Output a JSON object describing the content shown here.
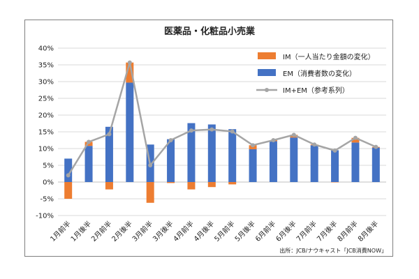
{
  "chart_data": {
    "type": "bar",
    "title": "医薬品・化粧品小売業",
    "source_note": "出所：JCB/ナウキャスト「JCB消費NOW」",
    "categories": [
      "1月前半",
      "1月後半",
      "2月前半",
      "2月後半",
      "3月前半",
      "3月後半",
      "4月前半",
      "4月後半",
      "5月前半",
      "5月後半",
      "6月前半",
      "6月後半",
      "7月前半",
      "7月後半",
      "8月前半",
      "8月後半"
    ],
    "y_ticks": [
      "-10%",
      "-5%",
      "0%",
      "5%",
      "10%",
      "15%",
      "20%",
      "25%",
      "30%",
      "35%",
      "40%"
    ],
    "ylim": [
      -10,
      40
    ],
    "grid": true,
    "legend_position": "top-right",
    "stacked": true,
    "series": [
      {
        "name": "IM（一人当たり金額の変化）",
        "type": "bar",
        "color": "#ED7D31",
        "values": [
          -5.0,
          1.2,
          -2.2,
          6.0,
          -6.2,
          -0.3,
          -2.2,
          -1.5,
          -0.7,
          1.2,
          0.3,
          0.8,
          0.2,
          -0.1,
          1.4,
          0.2
        ]
      },
      {
        "name": "EM（消費者数の変化）",
        "type": "bar",
        "color": "#4472C4",
        "values": [
          7.0,
          10.8,
          16.5,
          29.7,
          11.2,
          12.8,
          17.6,
          17.2,
          15.8,
          9.8,
          12.2,
          13.3,
          11.0,
          9.5,
          11.8,
          10.3
        ]
      },
      {
        "name": "IM+EM（参考系列）",
        "type": "line",
        "color": "#A5A5A5",
        "values": [
          2.0,
          12.0,
          14.3,
          35.7,
          5.0,
          12.5,
          15.4,
          15.7,
          15.1,
          11.0,
          12.5,
          14.1,
          11.2,
          9.4,
          13.2,
          10.5
        ]
      }
    ]
  }
}
